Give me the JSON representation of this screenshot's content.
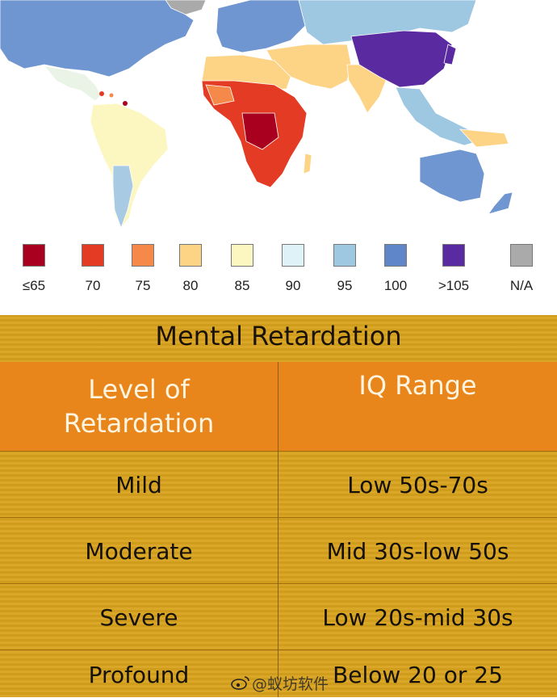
{
  "legend": {
    "items": [
      {
        "label": "≤65",
        "color": "#a8001e"
      },
      {
        "label": "70",
        "color": "#e43b24"
      },
      {
        "label": "75",
        "color": "#f5894a"
      },
      {
        "label": "80",
        "color": "#fdd386"
      },
      {
        "label": "85",
        "color": "#fcf6c0"
      },
      {
        "label": "90",
        "color": "#dff2f7"
      },
      {
        "label": "95",
        "color": "#9ec8e2"
      },
      {
        "label": "100",
        "color": "#5f86c9"
      },
      {
        "label": ">105",
        "color": "#5a2aa0"
      },
      {
        "label": "N/A",
        "color": "#aaaaaa"
      }
    ]
  },
  "table": {
    "title": "Mental Retardation",
    "headers": {
      "col1_line1": "Level of",
      "col1_line2": "Retardation",
      "col2": "IQ Range"
    },
    "rows": [
      {
        "level": "Mild",
        "range": "Low 50s-70s"
      },
      {
        "level": "Moderate",
        "range": "Mid 30s-low 50s"
      },
      {
        "level": "Severe",
        "range": "Low 20s-mid 30s"
      },
      {
        "level": "Profound",
        "range": "Below 20 or 25"
      }
    ]
  },
  "watermark": {
    "text": "@蚁坊软件"
  }
}
